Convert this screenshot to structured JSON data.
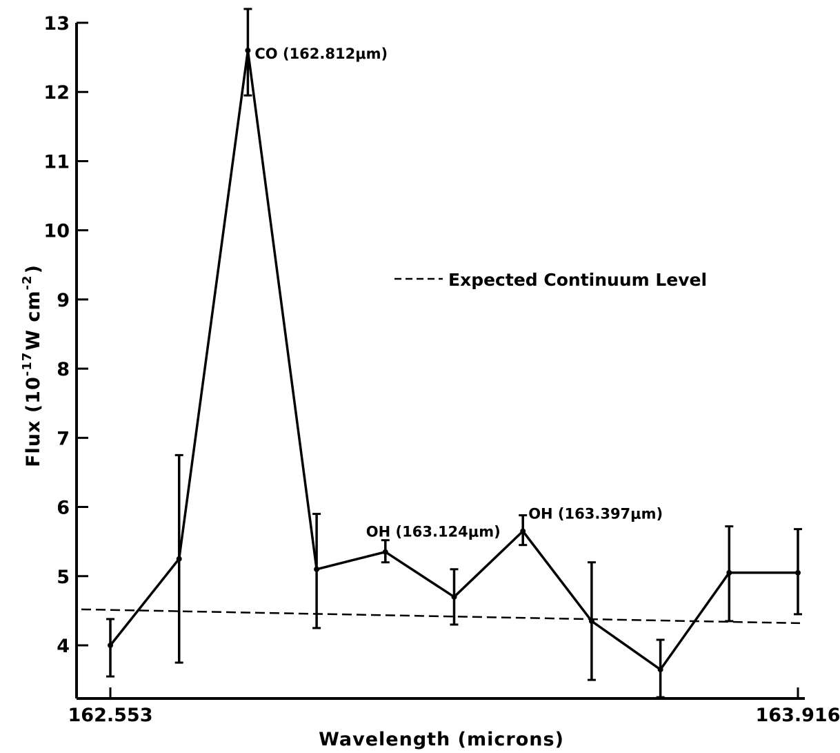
{
  "chart_data": {
    "type": "line",
    "xlabel": "Wavelength (microns)",
    "ylabel": "Flux (10^-17 W cm^-2)",
    "ylabel_parts": {
      "prefix": "Flux (10",
      "exp1": "-17",
      "mid": "W cm",
      "exp2": "-2",
      "suffix": ")"
    },
    "x_tick_labels": [
      "162.553",
      "163.916"
    ],
    "xlim": [
      162.553,
      163.916
    ],
    "ylim": [
      3.2,
      13.1
    ],
    "y_ticks": [
      4,
      5,
      6,
      7,
      8,
      9,
      10,
      11,
      12,
      13
    ],
    "grid": false,
    "series": [
      {
        "x": [
          162.553,
          162.6893,
          162.8256,
          162.9619,
          163.0982,
          163.2345,
          163.3708,
          163.5071,
          163.6434,
          163.7797,
          163.916
        ],
        "values": [
          4.0,
          5.25,
          12.6,
          5.1,
          5.35,
          4.7,
          5.65,
          4.35,
          3.65,
          5.05,
          5.05
        ],
        "error_low": [
          3.55,
          3.75,
          11.95,
          4.25,
          5.2,
          4.3,
          5.45,
          3.5,
          3.25,
          4.35,
          4.45
        ],
        "error_high": [
          4.38,
          6.75,
          13.2,
          5.9,
          5.52,
          5.1,
          5.88,
          5.2,
          4.08,
          5.72,
          5.68
        ]
      }
    ],
    "reference_line": {
      "label": "Expected Continuum Level",
      "y_start": 4.52,
      "y_end": 4.32
    },
    "legend_position": "upper-right",
    "annotations": [
      {
        "text": "CO (162.812μm)",
        "x": 162.8256,
        "y": 12.6
      },
      {
        "text": "OH (163.124μm)",
        "x": 163.0982,
        "y": 5.35
      },
      {
        "text": "OH (163.397μm)",
        "x": 163.3708,
        "y": 5.65
      }
    ]
  }
}
